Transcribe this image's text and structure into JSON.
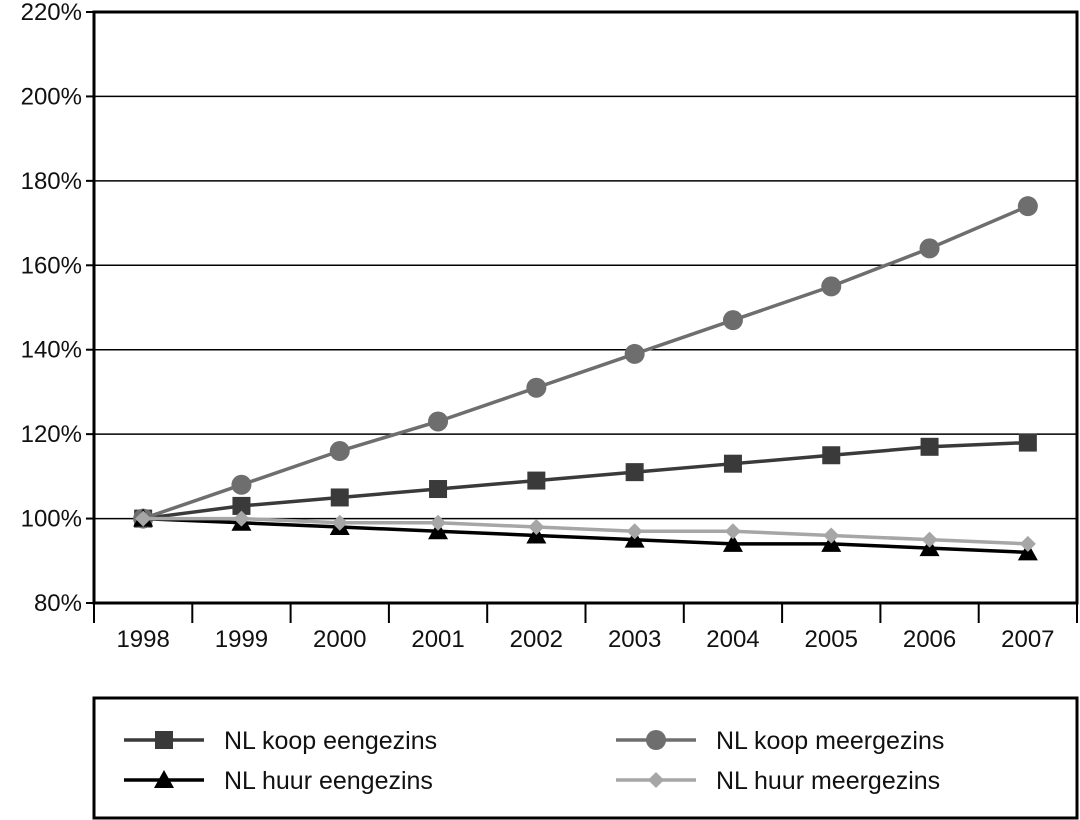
{
  "chart_data": {
    "type": "line",
    "title": "",
    "xlabel": "",
    "ylabel": "",
    "x": [
      "1998",
      "1999",
      "2000",
      "2001",
      "2002",
      "2003",
      "2004",
      "2005",
      "2006",
      "2007"
    ],
    "ylim": [
      80,
      220
    ],
    "y_ticks": [
      80,
      100,
      120,
      140,
      160,
      180,
      200,
      220
    ],
    "y_tick_labels": [
      "80%",
      "100%",
      "120%",
      "140%",
      "160%",
      "180%",
      "200%",
      "220%"
    ],
    "grid": "horizontal",
    "legend_position": "bottom",
    "series": [
      {
        "name": "NL koop eengezins",
        "marker": "square",
        "color": "#3a3a3a",
        "values": [
          100,
          103,
          105,
          107,
          109,
          111,
          113,
          115,
          117,
          118
        ]
      },
      {
        "name": "NL koop meergezins",
        "marker": "circle",
        "color": "#6e6e6e",
        "values": [
          100,
          108,
          116,
          123,
          131,
          139,
          147,
          155,
          164,
          174
        ]
      },
      {
        "name": "NL huur eengezins",
        "marker": "triangle",
        "color": "#000000",
        "values": [
          100,
          99,
          98,
          97,
          96,
          95,
          94,
          94,
          93,
          92
        ]
      },
      {
        "name": "NL huur meergezins",
        "marker": "diamond",
        "color": "#a6a6a6",
        "values": [
          100,
          100,
          99,
          99,
          98,
          97,
          97,
          96,
          95,
          94
        ]
      }
    ]
  }
}
